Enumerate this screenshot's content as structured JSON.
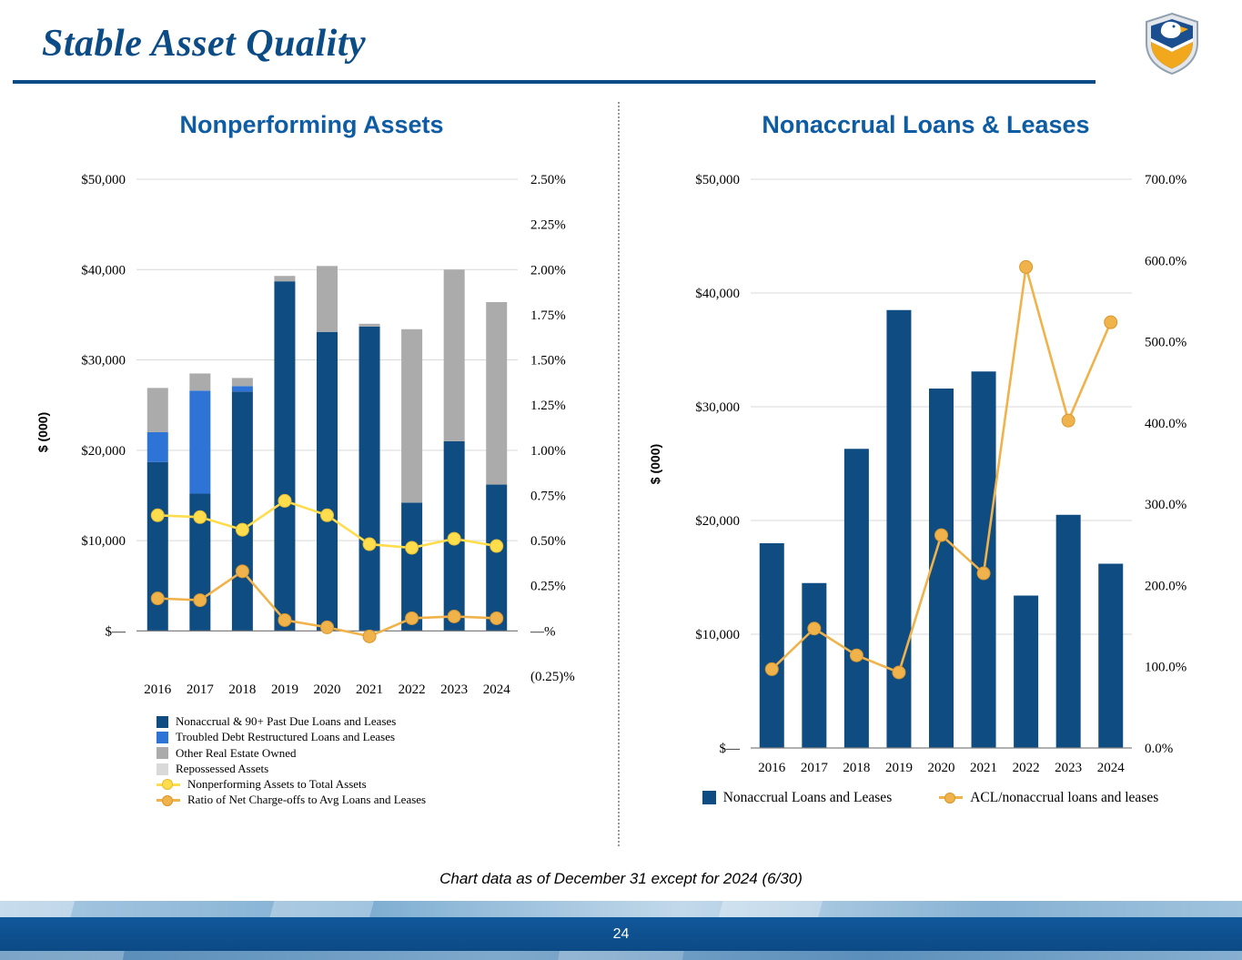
{
  "page": {
    "title": "Stable Asset Quality",
    "footnote": "Chart data as of December 31 except for 2024 (6/30)",
    "page_number": "24",
    "logo": "eagle-shield-logo"
  },
  "colors": {
    "navy": "#0F4C81",
    "bright_blue": "#2E74D6",
    "gray": "#ABABAB",
    "light_gray": "#D9D9D9",
    "yellow": "#FFDD4D",
    "yellow_edge": "#E3BE35",
    "gold": "#F0B24A",
    "gold_edge": "#D9982F",
    "grid": "#D9D9D9",
    "axis": "#808080",
    "title_blue": "#0E5DA4",
    "slide_title_blue": "#0C4C86"
  },
  "chart_data": [
    {
      "type": "bar",
      "overlay": "line",
      "title": "Nonperforming Assets",
      "categories": [
        "2016",
        "2017",
        "2018",
        "2019",
        "2020",
        "2021",
        "2022",
        "2023",
        "2024"
      ],
      "y_left": {
        "title": "$ (000)",
        "max": 50000,
        "step": 10000,
        "labels": [
          "$50,000",
          "$40,000",
          "$30,000",
          "$20,000",
          "$10,000",
          "$—"
        ]
      },
      "y_right": {
        "max": 2.5,
        "min": -0.25,
        "step": 0.25,
        "labels": [
          "2.50%",
          "2.25%",
          "2.00%",
          "1.75%",
          "1.50%",
          "1.25%",
          "1.00%",
          "0.75%",
          "0.50%",
          "0.25%",
          "—%",
          "(0.25)%"
        ]
      },
      "bar_series": [
        {
          "name": "Nonaccrual & 90+ Past Due Loans and Leases",
          "color_key": "navy",
          "values": [
            18700,
            15200,
            26500,
            38700,
            33100,
            33700,
            14200,
            21000,
            16200
          ]
        },
        {
          "name": "Troubled Debt Restructured Loans and Leases",
          "color_key": "bright_blue",
          "values": [
            3300,
            11400,
            600,
            0,
            0,
            0,
            0,
            0,
            0
          ]
        },
        {
          "name": "Other Real Estate Owned",
          "color_key": "gray",
          "values": [
            4900,
            1900,
            900,
            600,
            7300,
            300,
            19200,
            19000,
            20200
          ]
        },
        {
          "name": "Repossessed Assets",
          "color_key": "light_gray",
          "values": [
            0,
            0,
            0,
            0,
            0,
            0,
            0,
            0,
            0
          ]
        }
      ],
      "line_series": [
        {
          "name": "Nonperforming Assets to Total Assets",
          "color_key": "yellow",
          "edge_key": "yellow_edge",
          "axis": "right",
          "values": [
            0.64,
            0.63,
            0.56,
            0.72,
            0.64,
            0.48,
            0.46,
            0.51,
            0.47
          ]
        },
        {
          "name": "Ratio of Net Charge-offs to Avg Loans and Leases",
          "color_key": "gold",
          "edge_key": "gold_edge",
          "axis": "right",
          "values": [
            0.18,
            0.17,
            0.33,
            0.06,
            0.02,
            -0.03,
            0.07,
            0.08,
            0.07
          ]
        }
      ]
    },
    {
      "type": "bar",
      "overlay": "line",
      "title": "Nonaccrual Loans & Leases",
      "categories": [
        "2016",
        "2017",
        "2018",
        "2019",
        "2020",
        "2021",
        "2022",
        "2023",
        "2024"
      ],
      "y_left": {
        "title": "$ (000)",
        "max": 50000,
        "step": 10000,
        "labels": [
          "$50,000",
          "$40,000",
          "$30,000",
          "$20,000",
          "$10,000",
          "$—"
        ]
      },
      "y_right": {
        "max": 700,
        "min": 0,
        "step": 100,
        "labels": [
          "700.0%",
          "600.0%",
          "500.0%",
          "400.0%",
          "300.0%",
          "200.0%",
          "100.0%",
          "0.0%"
        ]
      },
      "bar_series": [
        {
          "name": "Nonaccrual Loans and Leases",
          "color_key": "navy",
          "values": [
            18000,
            14500,
            26300,
            38500,
            31600,
            33100,
            13400,
            20500,
            16200
          ]
        }
      ],
      "line_series": [
        {
          "name": "ACL/nonaccrual loans and leases",
          "color_key": "gold",
          "edge_key": "gold_edge",
          "axis": "right",
          "values": [
            97,
            147,
            114,
            93,
            262,
            215,
            592,
            403,
            524
          ]
        }
      ]
    }
  ]
}
